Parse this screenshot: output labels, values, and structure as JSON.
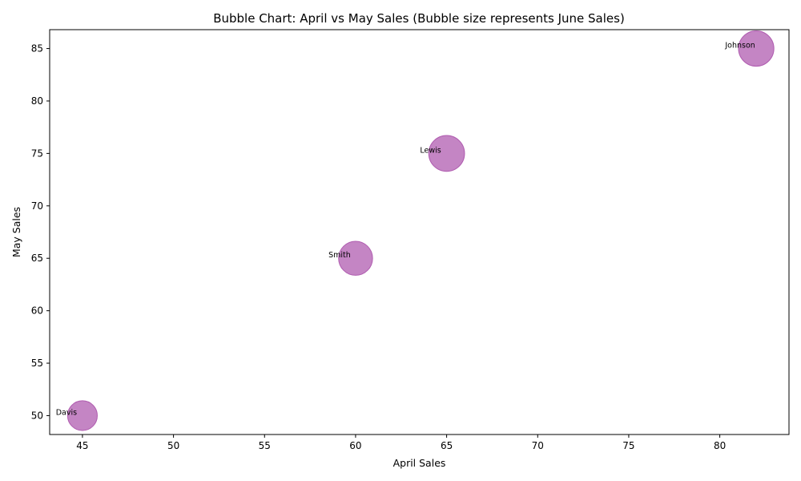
{
  "chart_data": {
    "type": "scatter",
    "title": "Bubble Chart: April vs May Sales (Bubble size represents June Sales)",
    "xlabel": "April Sales",
    "ylabel": "May Sales",
    "xlim": [
      43.2,
      83.8
    ],
    "ylim": [
      48.2,
      86.8
    ],
    "xticks": [
      45,
      50,
      55,
      60,
      65,
      70,
      75,
      80
    ],
    "yticks": [
      50,
      55,
      60,
      65,
      70,
      75,
      80,
      85
    ],
    "grid": false,
    "bubble_color": "#b05cb0",
    "points": [
      {
        "label": "Johnson",
        "x": 82,
        "y": 85,
        "size": 78
      },
      {
        "label": "Lewis",
        "x": 65,
        "y": 75,
        "size": 80
      },
      {
        "label": "Smith",
        "x": 60,
        "y": 65,
        "size": 72
      },
      {
        "label": "Davis",
        "x": 45,
        "y": 50,
        "size": 55
      }
    ]
  }
}
